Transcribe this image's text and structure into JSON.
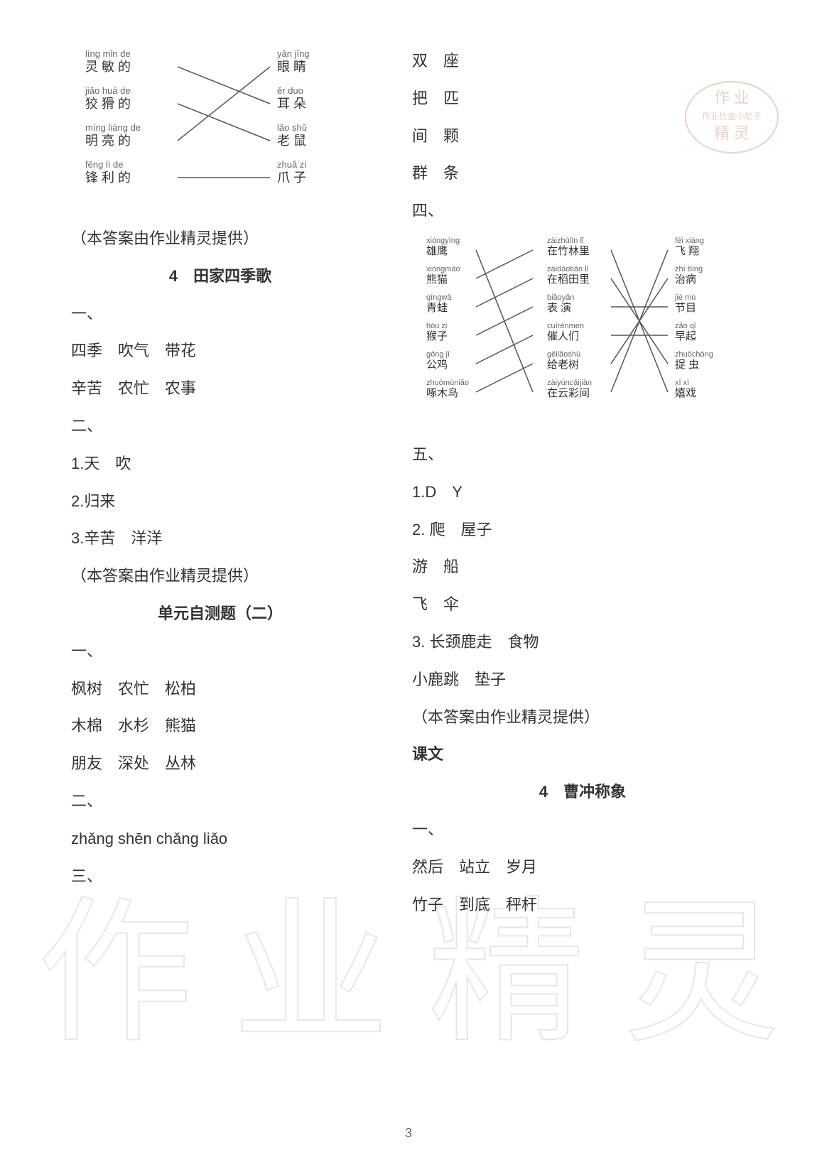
{
  "page_number": "3",
  "stamp": {
    "line1": "作 业",
    "line2": "作业检查小助手",
    "line3": "精 灵",
    "color": "#c09080"
  },
  "watermark_text": "作 业 精 灵",
  "left_column": {
    "diagram1": {
      "left_items": [
        {
          "pinyin": "líng mǐn de",
          "hanzi": "灵 敏 的"
        },
        {
          "pinyin": "jiǎo huá de",
          "hanzi": "狡 猾 的"
        },
        {
          "pinyin": "míng liàng de",
          "hanzi": "明 亮 的"
        },
        {
          "pinyin": "fēng lì de",
          "hanzi": "锋 利 的"
        }
      ],
      "right_items": [
        {
          "pinyin": "yǎn jīng",
          "hanzi": "眼 睛"
        },
        {
          "pinyin": "ěr duo",
          "hanzi": "耳 朵"
        },
        {
          "pinyin": "lǎo shǔ",
          "hanzi": "老 鼠"
        },
        {
          "pinyin": "zhuǎ zi",
          "hanzi": "爪 子"
        }
      ],
      "connections": [
        [
          0,
          1
        ],
        [
          1,
          2
        ],
        [
          2,
          0
        ],
        [
          3,
          3
        ]
      ],
      "line_color": "#555555"
    },
    "note1": "（本答案由作业精灵提供）",
    "title1": "4　田家四季歌",
    "sec1": "一、",
    "l1a": "四季　吹气　带花",
    "l1b": "辛苦　农忙　农事",
    "sec2": "二、",
    "l2a": "1.天　吹",
    "l2b": "2.归来",
    "l2c": "3.辛苦　洋洋",
    "note2": "（本答案由作业精灵提供）",
    "title2": "单元自测题（二）",
    "sec3": "一、",
    "l3a": "枫树　农忙　松柏",
    "l3b": "木棉　水杉　熊猫",
    "l3c": "朋友　深处　丛林",
    "sec4": "二、",
    "l4a": "zhǎng shēn chǎng liǎo",
    "sec5": "三、"
  },
  "right_column": {
    "r1": "双　座",
    "r2": "把　匹",
    "r3": "间　颗",
    "r4": "群　条",
    "sec4": "四、",
    "diagram2": {
      "left_items": [
        {
          "pinyin": "xióngyīng",
          "hanzi": "雄鹰"
        },
        {
          "pinyin": "xióngmāo",
          "hanzi": "熊猫"
        },
        {
          "pinyin": "qīngwā",
          "hanzi": "青蛙"
        },
        {
          "pinyin": "hóu zi",
          "hanzi": "猴子"
        },
        {
          "pinyin": "gōng jī",
          "hanzi": "公鸡"
        },
        {
          "pinyin": "zhuómùniǎo",
          "hanzi": "啄木鸟"
        }
      ],
      "mid_items": [
        {
          "pinyin": "zàizhúlín lǐ",
          "hanzi": "在竹林里"
        },
        {
          "pinyin": "zàidàotián lǐ",
          "hanzi": "在稻田里"
        },
        {
          "pinyin": "biǎoyǎn",
          "hanzi": "表 演"
        },
        {
          "pinyin": "cuīrénmen",
          "hanzi": "催人们"
        },
        {
          "pinyin": "gěilǎoshù",
          "hanzi": "给老树"
        },
        {
          "pinyin": "zàiyúncǎijiān",
          "hanzi": "在云彩间"
        }
      ],
      "right_items": [
        {
          "pinyin": "fēi xiáng",
          "hanzi": "飞 翔"
        },
        {
          "pinyin": "zhì bìng",
          "hanzi": "治病"
        },
        {
          "pinyin": "jié mù",
          "hanzi": "节目"
        },
        {
          "pinyin": "zǎo qǐ",
          "hanzi": "早起"
        },
        {
          "pinyin": "zhuōchóng",
          "hanzi": "捉 虫"
        },
        {
          "pinyin": "xī xì",
          "hanzi": "嬉戏"
        }
      ],
      "left_to_mid": [
        [
          0,
          5
        ],
        [
          1,
          0
        ],
        [
          2,
          1
        ],
        [
          3,
          2
        ],
        [
          4,
          3
        ],
        [
          5,
          4
        ]
      ],
      "mid_to_right": [
        [
          0,
          5
        ],
        [
          1,
          4
        ],
        [
          2,
          2
        ],
        [
          3,
          3
        ],
        [
          4,
          1
        ],
        [
          5,
          0
        ]
      ],
      "line_color": "#555555"
    },
    "sec5": "五、",
    "l5a": "1.D　Y",
    "l5b": "2. 爬　屋子",
    "l5c": "游　船",
    "l5d": "飞　伞",
    "l5e": "3. 长颈鹿走　食物",
    "l5f": "小鹿跳　垫子",
    "note3": "（本答案由作业精灵提供）",
    "title3": "课文",
    "title4": "4　曹冲称象",
    "sec6": "一、",
    "l6a": "然后　站立　岁月",
    "l6b": "竹子　到底　秤杆"
  }
}
